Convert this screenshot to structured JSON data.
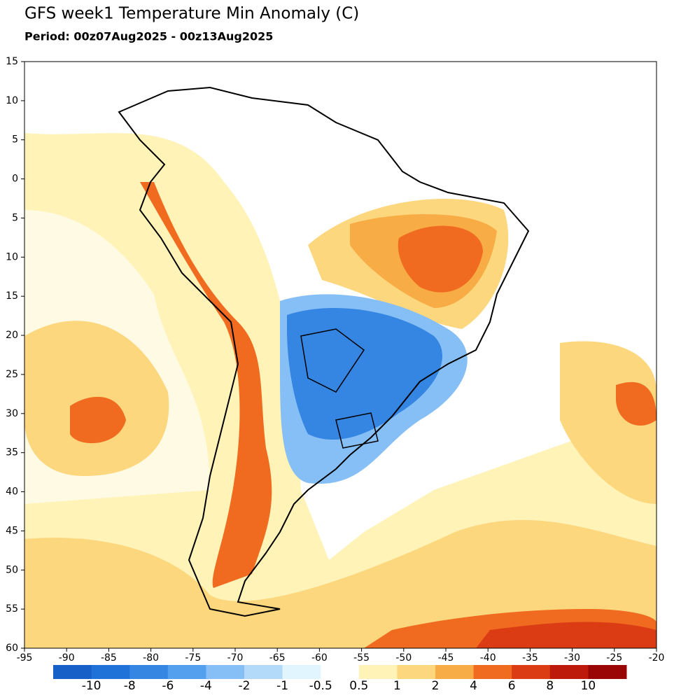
{
  "header": {
    "title": "GFS week1 Temperature Min Anomaly (C)",
    "subtitle": "Period: 00z07Aug2025 - 00z13Aug2025"
  },
  "map": {
    "lat_ticks": [
      15,
      10,
      5,
      0,
      -5,
      -10,
      -15,
      -20,
      -25,
      -30,
      -35,
      -40,
      -45,
      -50,
      -55,
      -60
    ],
    "lon_ticks": [
      -95,
      -90,
      -85,
      -80,
      -75,
      -70,
      -65,
      -60,
      -55,
      -50,
      -45,
      -40,
      -35,
      -30,
      -25,
      -20
    ],
    "lat_labels": [
      "15",
      "10",
      "5",
      "0",
      "5",
      "10",
      "15",
      "20",
      "25",
      "30",
      "35",
      "40",
      "45",
      "50",
      "55",
      "60"
    ]
  },
  "colorbar": {
    "levels": [
      -10,
      -8,
      -6,
      -4,
      -2,
      -1,
      -0.5,
      0.5,
      1,
      2,
      4,
      6,
      8,
      10
    ],
    "colors": [
      "#1660c8",
      "#1f72d8",
      "#3585e3",
      "#55a0ee",
      "#86bff5",
      "#b4dafa",
      "#e0f5fd",
      "#ffffff",
      "#fff3b8",
      "#fdd77e",
      "#f8ac45",
      "#f06a20",
      "#dc3c14",
      "#be1a0c",
      "#9a0606"
    ]
  }
}
